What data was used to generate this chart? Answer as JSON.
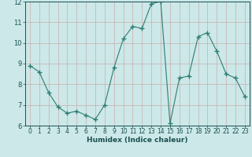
{
  "x": [
    0,
    1,
    2,
    3,
    4,
    5,
    6,
    7,
    8,
    9,
    10,
    11,
    12,
    13,
    14,
    15,
    16,
    17,
    18,
    19,
    20,
    21,
    22,
    23
  ],
  "y": [
    8.9,
    8.6,
    7.6,
    6.9,
    6.6,
    6.7,
    6.5,
    6.3,
    7.0,
    8.8,
    10.2,
    10.8,
    10.7,
    11.9,
    12.0,
    6.1,
    8.3,
    8.4,
    10.3,
    10.5,
    9.6,
    8.5,
    8.3,
    7.4
  ],
  "xlabel": "Humidex (Indice chaleur)",
  "ylim": [
    6,
    12
  ],
  "xlim_left": -0.5,
  "xlim_right": 23.5,
  "yticks": [
    6,
    7,
    8,
    9,
    10,
    11,
    12
  ],
  "xticks": [
    0,
    1,
    2,
    3,
    4,
    5,
    6,
    7,
    8,
    9,
    10,
    11,
    12,
    13,
    14,
    15,
    16,
    17,
    18,
    19,
    20,
    21,
    22,
    23
  ],
  "line_color": "#2e7d72",
  "marker": "+",
  "bg_color": "#cce8e8",
  "grid_color_v": "#c8a0a0",
  "grid_color_h": "#c8a0a0",
  "tick_fontsize": 5.5,
  "xlabel_fontsize": 6.5
}
